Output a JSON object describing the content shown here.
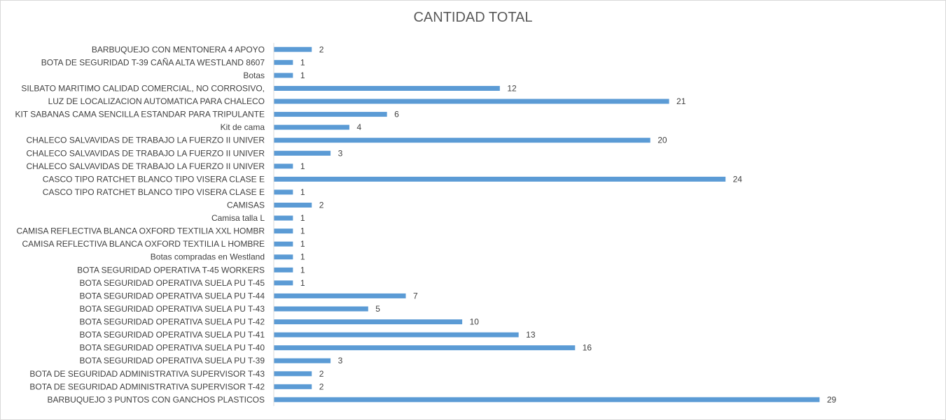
{
  "chart_data": {
    "type": "bar",
    "orientation": "horizontal",
    "title": "CANTIDAD TOTAL",
    "xlabel": "",
    "ylabel": "",
    "xlim": [
      0,
      30
    ],
    "grid": false,
    "legend": "none",
    "bar_color": "#5b9bd5",
    "categories": [
      "BARBUQUEJO CON MENTONERA 4 APOYO",
      "BOTA DE SEGURIDAD T-39 CAÑA ALTA WESTLAND 8607",
      "Botas",
      "SILBATO MARITIMO CALIDAD COMERCIAL, NO CORROSIVO,",
      "LUZ DE LOCALIZACION AUTOMATICA PARA CHALECO",
      "KIT SABANAS CAMA SENCILLA ESTANDAR PARA TRIPULANTE",
      "Kit de cama",
      "CHALECO SALVAVIDAS DE TRABAJO LA FUERZO II  UNIVER",
      "CHALECO SALVAVIDAS DE TRABAJO LA FUERZO II UNIVER",
      "CHALECO SALVAVIDAS DE TRABAJO LA FUERZO II  UNIVER",
      "CASCO TIPO RATCHET BLANCO TIPO VISERA CLASE E",
      "CASCO TIPO RATCHET BLANCO TIPO VISERA CLASE E",
      "CAMISAS",
      "Camisa talla L",
      "CAMISA REFLECTIVA BLANCA OXFORD TEXTILIA XXL HOMBR",
      "CAMISA REFLECTIVA BLANCA OXFORD TEXTILIA L HOMBRE",
      "Botas compradas en Westland",
      "BOTA SEGURIDAD OPERATIVA T-45 WORKERS",
      "BOTA SEGURIDAD OPERATIVA SUELA PU T-45",
      "BOTA SEGURIDAD OPERATIVA SUELA PU T-44",
      "BOTA SEGURIDAD OPERATIVA SUELA PU T-43",
      "BOTA SEGURIDAD OPERATIVA SUELA PU T-42",
      "BOTA SEGURIDAD OPERATIVA SUELA PU T-41",
      "BOTA SEGURIDAD OPERATIVA SUELA PU T-40",
      "BOTA SEGURIDAD OPERATIVA SUELA PU T-39",
      "BOTA DE SEGURIDAD ADMINISTRATIVA SUPERVISOR T-43",
      "BOTA DE SEGURIDAD ADMINISTRATIVA SUPERVISOR T-42",
      "BARBUQUEJO 3 PUNTOS CON GANCHOS PLASTICOS"
    ],
    "values": [
      2,
      1,
      1,
      12,
      21,
      6,
      4,
      20,
      3,
      1,
      24,
      1,
      2,
      1,
      1,
      1,
      1,
      1,
      1,
      7,
      5,
      10,
      13,
      16,
      3,
      2,
      2,
      29
    ]
  }
}
